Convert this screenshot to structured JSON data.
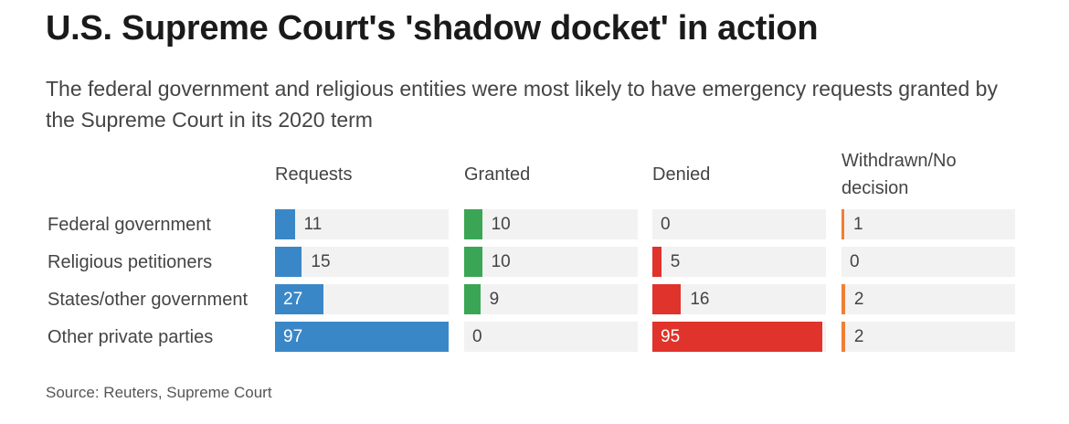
{
  "title": "U.S. Supreme Court's 'shadow docket' in action",
  "subtitle": "The federal government and religious entities were most likely to have emergency requests granted by the Supreme Court in its 2020 term",
  "source": "Source: Reuters, Supreme Court",
  "colors": {
    "requests": "#3a87c8",
    "granted": "#3aa655",
    "denied": "#e0332b",
    "withdrawn": "#f07f35",
    "track": "#f2f2f2"
  },
  "chart_data": {
    "type": "bar",
    "title": "U.S. Supreme Court's 'shadow docket' in action",
    "categories": [
      "Federal government",
      "Religious petitioners",
      "States/other government",
      "Other private parties"
    ],
    "series": [
      {
        "key": "requests",
        "name": "Requests",
        "values": [
          11,
          15,
          27,
          97
        ]
      },
      {
        "key": "granted",
        "name": "Granted",
        "values": [
          10,
          10,
          9,
          0
        ]
      },
      {
        "key": "denied",
        "name": "Denied",
        "values": [
          0,
          5,
          16,
          95
        ]
      },
      {
        "key": "withdrawn",
        "name": "Withdrawn/No decision",
        "values": [
          1,
          0,
          2,
          2
        ]
      }
    ],
    "xlim": [
      0,
      97
    ]
  }
}
